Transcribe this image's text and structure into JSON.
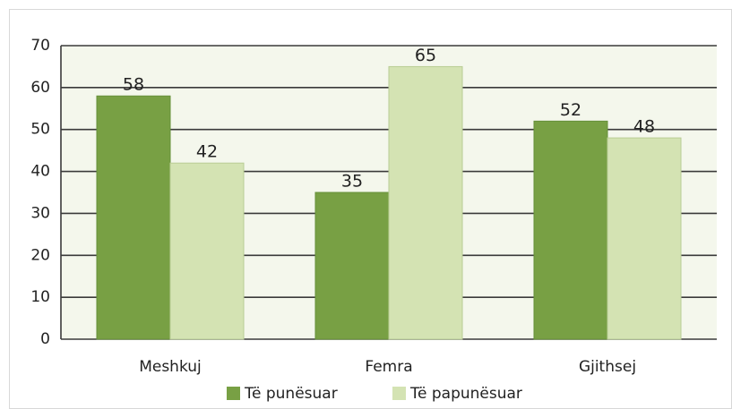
{
  "chart_data": {
    "type": "bar",
    "categories": [
      "Meshkuj",
      "Femra",
      "Gjithsej"
    ],
    "series": [
      {
        "name": "Të punësuar",
        "color": "#78a044",
        "values": [
          58,
          35,
          52
        ]
      },
      {
        "name": "Të papunësuar",
        "color": "#d4e3b3",
        "values": [
          42,
          65,
          48
        ]
      }
    ],
    "ylim": [
      0,
      70
    ],
    "yticks": [
      0,
      10,
      20,
      30,
      40,
      50,
      60,
      70
    ],
    "grid": true,
    "legend": "bottom"
  }
}
